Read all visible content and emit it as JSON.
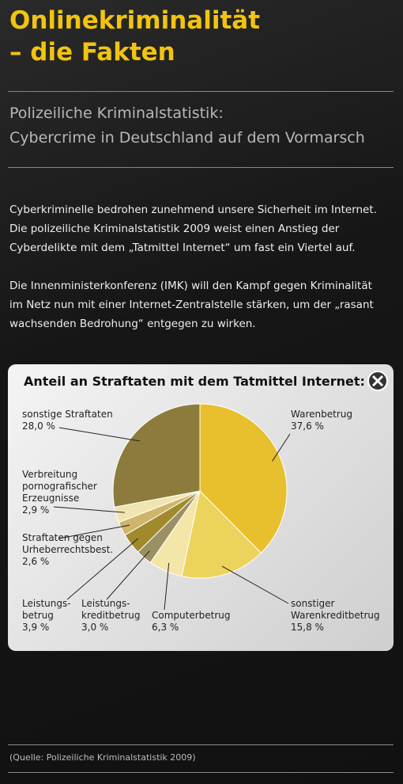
{
  "header": {
    "title": "Onlinekriminalität\n– die Fakten",
    "subtitle": "Polizeiliche Kriminalstatistik:\nCybercrime in Deutschland auf dem Vormarsch"
  },
  "paragraphs": [
    "Cyberkriminelle bedrohen zunehmend unsere Sicherheit im Internet.\nDie polizeiliche Kriminalstatistik 2009 weist einen Anstieg der\nCyberdelikte mit dem „Tatmittel Internet“ um fast ein Viertel auf.",
    "Die Innenministerkonferenz (IMK) will den Kampf gegen Kriminalität\nim Netz nun mit einer Internet-Zentralstelle stärken, um der „rasant\nwachsenden Bedrohung“ entgegen zu wirken."
  ],
  "chart_data": {
    "type": "pie",
    "title": "Anteil an Straftaten mit dem Tatmittel Internet:",
    "categories": [
      "Warenbetrug",
      "sonstiger\nWarenkreditbetrug",
      "Computerbetrug",
      "Leistungs-\nkreditbetrug",
      "Leistungs-\nbetrug",
      "Straftaten gegen\nUrheberrechtsbest.",
      "Verbreitung\npornografischer\nErzeugnisse",
      "sonstige Straftaten"
    ],
    "values": [
      37.6,
      15.8,
      6.3,
      3.0,
      3.9,
      2.6,
      2.9,
      28.0
    ],
    "value_labels": [
      "37,6 %",
      "15,8 %",
      "6,3 %",
      "3,0 %",
      "3,9 %",
      "2,6 %",
      "2,9 %",
      "28,0 %"
    ],
    "colors": [
      "#e8bf2c",
      "#ecd35c",
      "#f3e6a8",
      "#9a9064",
      "#a08a2c",
      "#cdb56a",
      "#f1e4b0",
      "#8c7b3c"
    ]
  },
  "footer": {
    "source": "(Quelle: Polizeiliche Kriminalstatistik 2009)"
  }
}
